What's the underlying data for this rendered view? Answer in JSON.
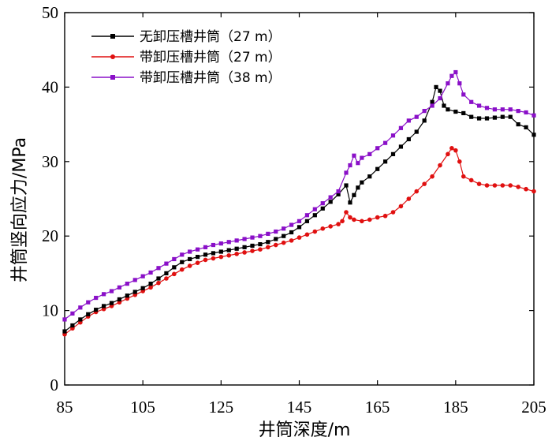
{
  "chart_data": {
    "type": "line",
    "title": "",
    "xlabel": "井筒深度/m",
    "ylabel": "井筒竖向应力/MPa",
    "xlim": [
      85,
      205
    ],
    "ylim": [
      0,
      50
    ],
    "xticks": [
      85,
      105,
      125,
      145,
      165,
      185,
      205
    ],
    "yticks": [
      0,
      10,
      20,
      30,
      40,
      50
    ],
    "legend_position": "top-left",
    "series": [
      {
        "name": "无卸压槽井筒（27 m）",
        "color": "#000000",
        "marker": "square",
        "x": [
          85,
          87,
          89,
          91,
          93,
          95,
          97,
          99,
          101,
          103,
          105,
          107,
          109,
          111,
          113,
          115,
          117,
          119,
          121,
          123,
          125,
          127,
          129,
          131,
          133,
          135,
          137,
          139,
          141,
          143,
          145,
          147,
          149,
          151,
          153,
          155,
          157,
          158,
          159,
          160,
          161,
          163,
          165,
          167,
          169,
          171,
          173,
          175,
          177,
          179,
          180,
          181,
          182,
          183,
          185,
          187,
          189,
          191,
          193,
          195,
          197,
          199,
          201,
          203,
          205
        ],
        "y": [
          7.2,
          8.0,
          8.8,
          9.5,
          10.1,
          10.6,
          11.0,
          11.5,
          12.0,
          12.5,
          13.0,
          13.6,
          14.3,
          15.0,
          15.8,
          16.5,
          16.9,
          17.2,
          17.5,
          17.7,
          17.9,
          18.1,
          18.3,
          18.5,
          18.7,
          18.9,
          19.2,
          19.6,
          20.0,
          20.5,
          21.2,
          22.0,
          22.8,
          23.7,
          24.6,
          25.6,
          26.8,
          24.5,
          25.5,
          26.5,
          27.2,
          28.0,
          29.0,
          30.0,
          31.0,
          32.0,
          33.0,
          34.0,
          35.5,
          38.0,
          40.0,
          39.5,
          37.5,
          37.0,
          36.7,
          36.5,
          36.0,
          35.8,
          35.8,
          35.9,
          36.0,
          36.0,
          35.0,
          34.6,
          33.6
        ]
      },
      {
        "name": "带卸压槽井筒（27 m）",
        "color": "#e01010",
        "marker": "circle",
        "x": [
          85,
          87,
          89,
          91,
          93,
          95,
          97,
          99,
          101,
          103,
          105,
          107,
          109,
          111,
          113,
          115,
          117,
          119,
          121,
          123,
          125,
          127,
          129,
          131,
          133,
          135,
          137,
          139,
          141,
          143,
          145,
          147,
          149,
          151,
          153,
          155,
          156,
          157,
          158,
          159,
          161,
          163,
          165,
          167,
          169,
          171,
          173,
          175,
          177,
          179,
          181,
          183,
          184,
          185,
          186,
          187,
          189,
          191,
          193,
          195,
          197,
          199,
          201,
          203,
          205
        ],
        "y": [
          6.8,
          7.6,
          8.4,
          9.2,
          9.8,
          10.2,
          10.6,
          11.1,
          11.6,
          12.1,
          12.6,
          13.1,
          13.7,
          14.3,
          14.9,
          15.5,
          16.0,
          16.4,
          16.8,
          17.0,
          17.2,
          17.4,
          17.6,
          17.8,
          18.0,
          18.2,
          18.5,
          18.8,
          19.1,
          19.4,
          19.8,
          20.2,
          20.6,
          21.0,
          21.3,
          21.6,
          22.0,
          23.2,
          22.5,
          22.2,
          22.0,
          22.2,
          22.5,
          22.7,
          23.2,
          24.0,
          25.0,
          26.0,
          27.0,
          28.0,
          29.5,
          31.0,
          31.8,
          31.5,
          30.0,
          28.0,
          27.5,
          27.0,
          26.8,
          26.8,
          26.8,
          26.8,
          26.6,
          26.3,
          26.0
        ]
      },
      {
        "name": "带卸压槽井筒（38 m）",
        "color": "#8a10c8",
        "marker": "square",
        "x": [
          85,
          87,
          89,
          91,
          93,
          95,
          97,
          99,
          101,
          103,
          105,
          107,
          109,
          111,
          113,
          115,
          117,
          119,
          121,
          123,
          125,
          127,
          129,
          131,
          133,
          135,
          137,
          139,
          141,
          143,
          145,
          147,
          149,
          151,
          153,
          155,
          157,
          158,
          159,
          160,
          161,
          163,
          165,
          167,
          169,
          171,
          173,
          175,
          177,
          179,
          181,
          183,
          184,
          185,
          186,
          187,
          189,
          191,
          193,
          195,
          197,
          199,
          201,
          203,
          205
        ],
        "y": [
          8.8,
          9.6,
          10.4,
          11.1,
          11.7,
          12.2,
          12.6,
          13.1,
          13.6,
          14.1,
          14.6,
          15.1,
          15.7,
          16.3,
          16.9,
          17.5,
          17.9,
          18.2,
          18.5,
          18.8,
          19.0,
          19.2,
          19.4,
          19.6,
          19.8,
          20.0,
          20.3,
          20.6,
          21.0,
          21.5,
          22.0,
          22.8,
          23.6,
          24.4,
          25.2,
          26.0,
          28.5,
          29.5,
          30.8,
          29.8,
          30.5,
          31.0,
          31.8,
          32.5,
          33.5,
          34.5,
          35.5,
          36.0,
          36.8,
          37.5,
          38.5,
          40.5,
          41.5,
          42.0,
          40.5,
          39.0,
          38.0,
          37.5,
          37.2,
          37.0,
          37.0,
          37.0,
          36.8,
          36.6,
          36.2
        ]
      }
    ]
  }
}
